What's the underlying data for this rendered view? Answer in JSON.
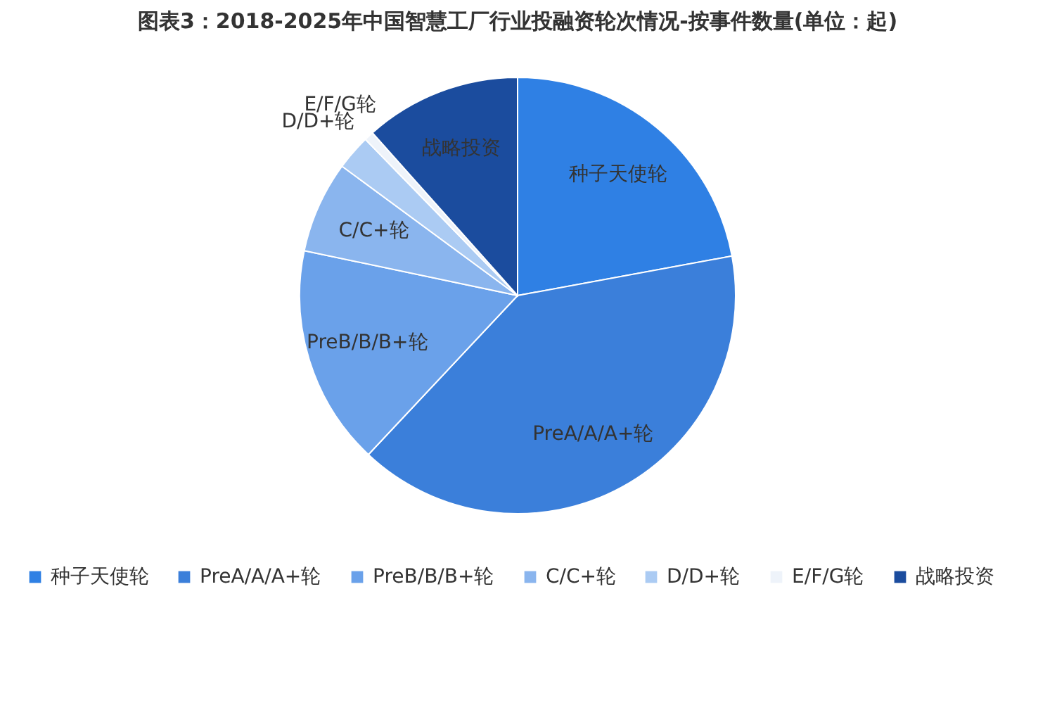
{
  "chart_data": {
    "type": "pie",
    "title": "图表3：2018-2025年中国智慧工厂行业投融资轮次情况-按事件数量(单位：起)",
    "categories": [
      "种子天使轮",
      "PreA/A/A+轮",
      "PreB/B/B+轮",
      "C/C+轮",
      "D/D+轮",
      "E/F/G轮",
      "战略投资"
    ],
    "values": [
      22.1,
      39.9,
      16.3,
      6.8,
      2.6,
      0.7,
      11.6
    ],
    "colors": [
      "#2f80e4",
      "#3b7fda",
      "#6aa1ea",
      "#8ab5ee",
      "#abcbf3",
      "#eef3fa",
      "#1b4c9e"
    ],
    "legend": "bottom"
  }
}
